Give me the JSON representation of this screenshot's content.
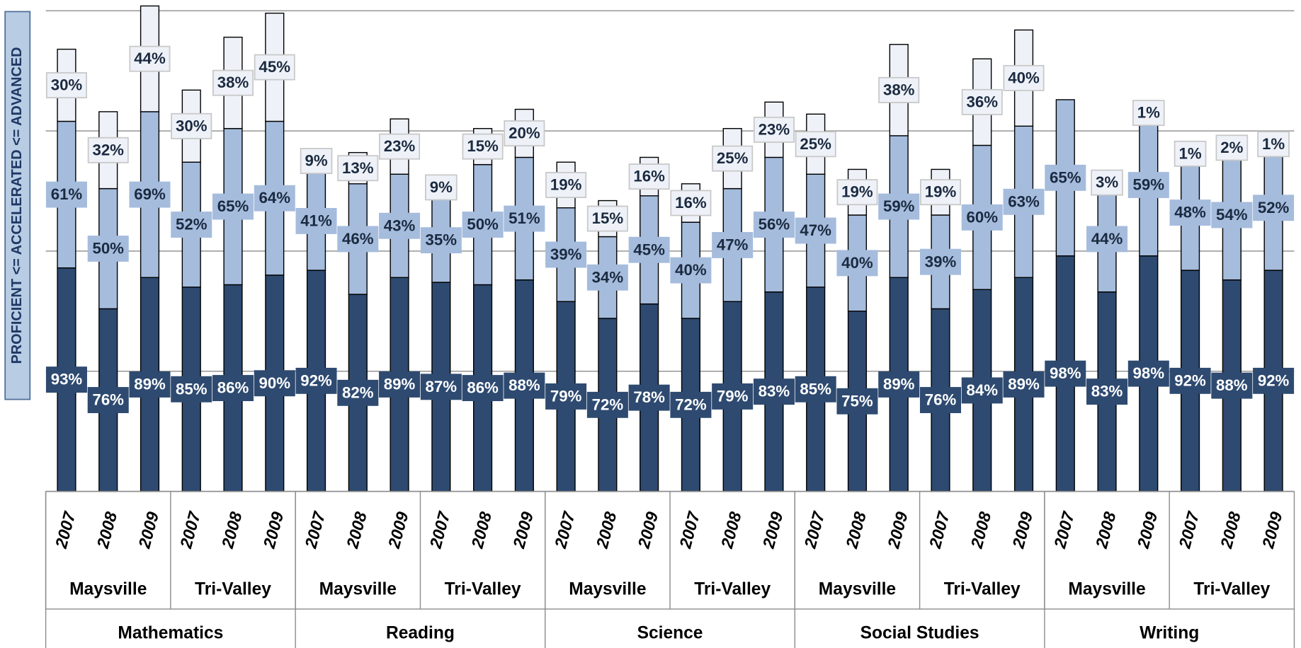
{
  "chart_data": {
    "type": "stacked-bar",
    "y_label": "PROFICIENT <= ACCELERATED <= ADVANCED",
    "ylim": [
      0,
      200
    ],
    "gridlines": [
      0,
      50,
      100,
      150,
      200
    ],
    "categories": [
      "2007",
      "2008",
      "2009",
      "2007",
      "2008",
      "2009",
      "2007",
      "2008",
      "2009",
      "2007",
      "2008",
      "2009",
      "2007",
      "2008",
      "2009",
      "2007",
      "2008",
      "2009",
      "2007",
      "2008",
      "2009",
      "2007",
      "2008",
      "2009",
      "2007",
      "2008",
      "2009",
      "2007",
      "2008",
      "2009"
    ],
    "districts": [
      "Maysville",
      "Tri-Valley",
      "Maysville",
      "Tri-Valley",
      "Maysville",
      "Tri-Valley",
      "Maysville",
      "Tri-Valley",
      "Maysville",
      "Tri-Valley"
    ],
    "subjects": [
      "Mathematics",
      "Reading",
      "Science",
      "Social Studies",
      "Writing"
    ],
    "series": [
      {
        "color": "#2e4a70",
        "label_color": "#ffffff",
        "values": [
          93,
          76,
          89,
          85,
          86,
          90,
          92,
          82,
          89,
          87,
          86,
          88,
          79,
          72,
          78,
          72,
          79,
          83,
          85,
          75,
          89,
          76,
          84,
          89,
          98,
          83,
          98,
          92,
          88,
          92
        ],
        "value_labels": [
          "93%",
          "76%",
          "89%",
          "85%",
          "86%",
          "90%",
          "92%",
          "82%",
          "89%",
          "87%",
          "86%",
          "88%",
          "79%",
          "72%",
          "78%",
          "72%",
          "79%",
          "83%",
          "85%",
          "75%",
          "89%",
          "76%",
          "84%",
          "89%",
          "98%",
          "83%",
          "98%",
          "92%",
          "88%",
          "92%"
        ]
      },
      {
        "color": "#a5bcdd",
        "label_color": "#1b2a40",
        "values": [
          61,
          50,
          69,
          52,
          65,
          64,
          41,
          46,
          43,
          35,
          50,
          51,
          39,
          34,
          45,
          40,
          47,
          56,
          47,
          40,
          59,
          39,
          60,
          63,
          65,
          44,
          59,
          48,
          54,
          52
        ],
        "value_labels": [
          "61%",
          "50%",
          "69%",
          "52%",
          "65%",
          "64%",
          "41%",
          "46%",
          "43%",
          "35%",
          "50%",
          "51%",
          "39%",
          "34%",
          "45%",
          "40%",
          "47%",
          "56%",
          "47%",
          "40%",
          "59%",
          "39%",
          "60%",
          "63%",
          "65%",
          "44%",
          "59%",
          "48%",
          "54%",
          "52%"
        ]
      },
      {
        "color": "#eef2f8",
        "label_color": "#1b2a40",
        "values": [
          30,
          32,
          44,
          30,
          38,
          45,
          9,
          13,
          23,
          9,
          15,
          20,
          19,
          15,
          16,
          16,
          25,
          23,
          25,
          19,
          38,
          19,
          36,
          40,
          null,
          3,
          1,
          1,
          2,
          1
        ],
        "value_labels": [
          "30%",
          "32%",
          "44%",
          "30%",
          "38%",
          "45%",
          "9%",
          "13%",
          "23%",
          "9%",
          "15%",
          "20%",
          "19%",
          "15%",
          "16%",
          "16%",
          "25%",
          "23%",
          "25%",
          "19%",
          "38%",
          "19%",
          "36%",
          "40%",
          null,
          "3%",
          "1%",
          "1%",
          "2%",
          "1%"
        ]
      }
    ]
  }
}
